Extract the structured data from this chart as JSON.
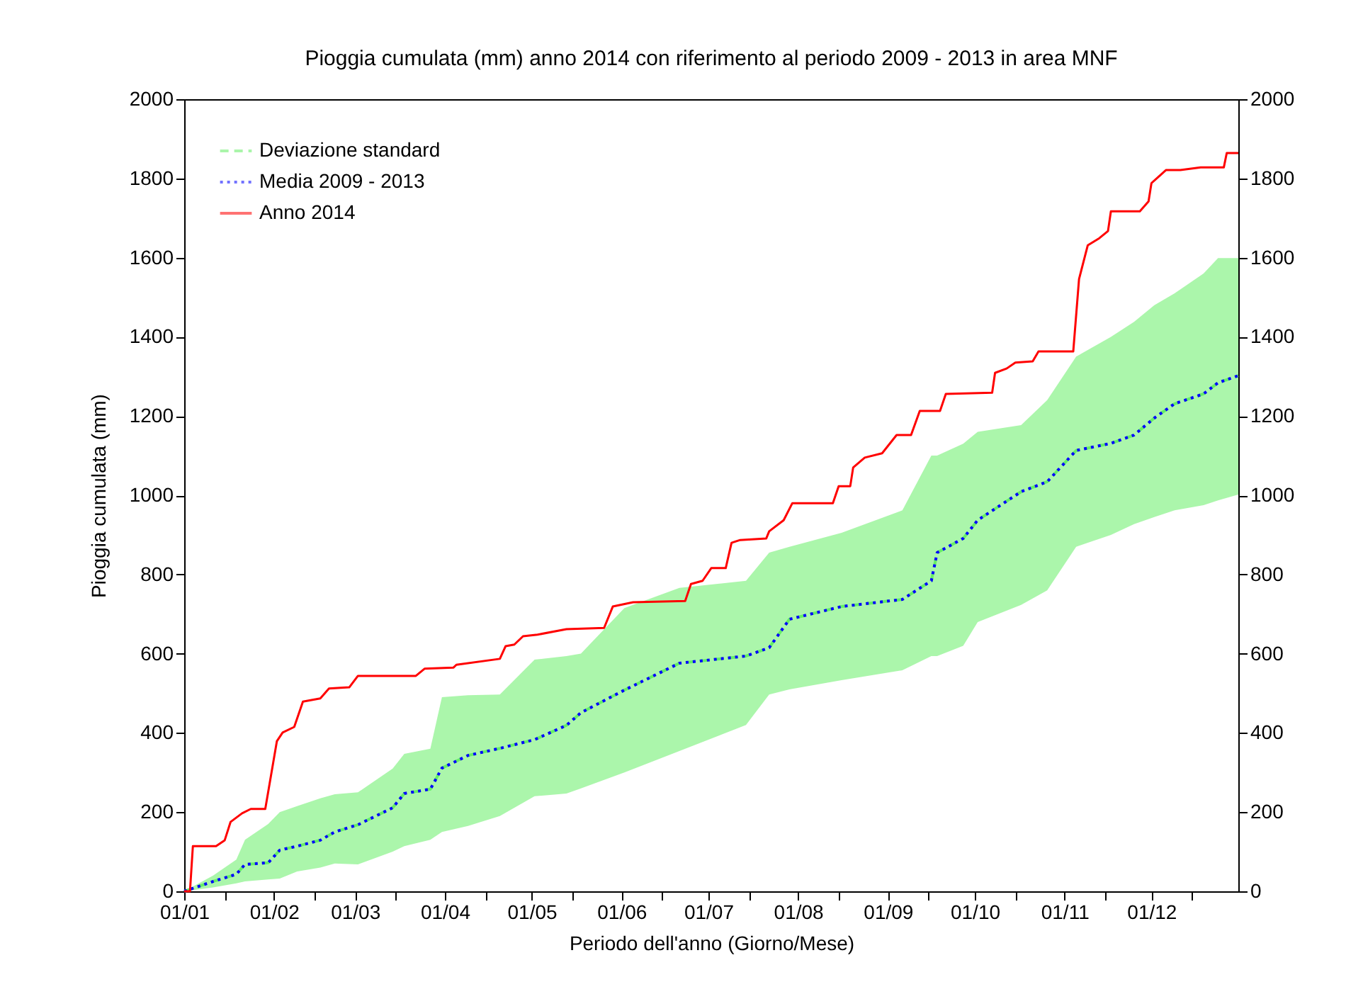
{
  "chart_data": {
    "type": "line",
    "title": "Pioggia cumulata (mm) anno 2014 con riferimento al periodo 2009 - 2013 in area MNF",
    "xlabel": "Periodo dell'anno (Giorno/Mese)",
    "ylabel": "Pioggia cumulata (mm)",
    "xlim": [
      "--01-01",
      "--12-31"
    ],
    "xticks": [
      {
        "value": "--01-01",
        "label": "01/01"
      },
      {
        "value": "--01-15",
        "label": null
      },
      {
        "value": "--02-01",
        "label": "01/02"
      },
      {
        "value": "--02-15",
        "label": null
      },
      {
        "value": "--03-01",
        "label": "01/03"
      },
      {
        "value": "--03-15",
        "label": null
      },
      {
        "value": "--04-01",
        "label": "01/04"
      },
      {
        "value": "--04-15",
        "label": null
      },
      {
        "value": "--05-01",
        "label": "01/05"
      },
      {
        "value": "--05-15",
        "label": null
      },
      {
        "value": "--06-01",
        "label": "01/06"
      },
      {
        "value": "--06-15",
        "label": null
      },
      {
        "value": "--07-01",
        "label": "01/07"
      },
      {
        "value": "--07-15",
        "label": null
      },
      {
        "value": "--08-01",
        "label": "01/08"
      },
      {
        "value": "--08-15",
        "label": null
      },
      {
        "value": "--09-01",
        "label": "01/09"
      },
      {
        "value": "--09-15",
        "label": null
      },
      {
        "value": "--10-01",
        "label": "01/10"
      },
      {
        "value": "--10-15",
        "label": null
      },
      {
        "value": "--11-01",
        "label": "01/11"
      },
      {
        "value": "--11-15",
        "label": null
      },
      {
        "value": "--12-01",
        "label": "01/12"
      },
      {
        "value": "--12-15",
        "label": null
      }
    ],
    "ylim": [
      0,
      2000
    ],
    "yticks": [
      0,
      200,
      400,
      600,
      800,
      1000,
      1200,
      1400,
      1600,
      1800,
      2000
    ],
    "y2lim": [
      0,
      2000
    ],
    "y2ticks": [
      0,
      200,
      400,
      600,
      800,
      1000,
      1200,
      1400,
      1600,
      1800,
      2000
    ],
    "legend": "top left",
    "series": [
      {
        "name": "Deviazione standard",
        "color": "#66ee66",
        "type": "line",
        "line_style": "dashed",
        "x": [
          "--01-01",
          "--01-11",
          "--01-19",
          "--01-22",
          "--01-30",
          "--02-03",
          "--02-09",
          "--02-17",
          "--02-22",
          "--03-02",
          "--03-14",
          "--03-18",
          "--03-27",
          "--03-31",
          "--04-09",
          "--04-20",
          "--05-02",
          "--05-13",
          "--05-18",
          "--06-02",
          "--06-21",
          "--07-14",
          "--07-22",
          "--07-29",
          "--08-16",
          "--09-06",
          "--09-16",
          "--09-18",
          "--09-27",
          "--10-02",
          "--10-17",
          "--10-26",
          "--11-05",
          "--11-17",
          "--11-25",
          "--12-02",
          "--12-09",
          "--12-19",
          "--12-24",
          "--12-31"
        ],
        "values": [
          0,
          25,
          43,
          68,
          72,
          104,
          114,
          129,
          150,
          168,
          211,
          247,
          258,
          311,
          343,
          361,
          383,
          419,
          451,
          508,
          576,
          594,
          615,
          687,
          719,
          737,
          784,
          855,
          891,
          937,
          1009,
          1034,
          1113,
          1131,
          1152,
          1195,
          1231,
          1256,
          1284,
          1302
        ],
        "lower": [
          0,
          10,
          20,
          25,
          30,
          32,
          50,
          60,
          70,
          68,
          100,
          114,
          130,
          150,
          165,
          190,
          240,
          247,
          260,
          300,
          354,
          420,
          497,
          510,
          533,
          558,
          594,
          594,
          620,
          680,
          723,
          760,
          870,
          900,
          927,
          945,
          962,
          975,
          987,
          1002
        ],
        "upper": [
          0,
          40,
          80,
          130,
          170,
          200,
          215,
          235,
          245,
          250,
          310,
          347,
          360,
          490,
          495,
          497,
          585,
          594,
          600,
          715,
          766,
          784,
          855,
          870,
          905,
          962,
          1100,
          1100,
          1130,
          1160,
          1177,
          1240,
          1350,
          1400,
          1438,
          1480,
          1510,
          1560,
          1599,
          1599
        ]
      },
      {
        "name": "Media 2009 - 2013",
        "color": "#0000ff",
        "type": "line",
        "line_style": "dotted",
        "x": [
          "--01-01",
          "--01-11",
          "--01-19",
          "--01-22",
          "--01-30",
          "--02-03",
          "--02-09",
          "--02-17",
          "--02-22",
          "--03-02",
          "--03-14",
          "--03-18",
          "--03-27",
          "--03-31",
          "--04-09",
          "--04-20",
          "--05-02",
          "--05-13",
          "--05-18",
          "--06-02",
          "--06-21",
          "--07-14",
          "--07-22",
          "--07-29",
          "--08-16",
          "--09-06",
          "--09-16",
          "--09-18",
          "--09-27",
          "--10-02",
          "--10-17",
          "--10-26",
          "--11-05",
          "--11-17",
          "--11-25",
          "--12-02",
          "--12-09",
          "--12-19",
          "--12-24",
          "--12-31"
        ],
        "values": [
          0,
          25,
          43,
          68,
          72,
          104,
          114,
          129,
          150,
          168,
          211,
          247,
          258,
          311,
          343,
          361,
          383,
          419,
          451,
          508,
          576,
          594,
          615,
          687,
          719,
          737,
          784,
          855,
          891,
          937,
          1009,
          1034,
          1113,
          1131,
          1152,
          1195,
          1231,
          1256,
          1284,
          1302
        ]
      },
      {
        "name": "Anno 2014",
        "color": "#ff0000",
        "type": "line",
        "line_style": "solid",
        "x": [
          "--01-01",
          "--01-03",
          "--01-04",
          "--01-12",
          "--01-15",
          "--01-17",
          "--01-21",
          "--01-24",
          "--01-29",
          "--02-02",
          "--02-04",
          "--02-08",
          "--02-11",
          "--02-17",
          "--02-20",
          "--02-27",
          "--03-02",
          "--03-22",
          "--03-25",
          "--04-04",
          "--04-05",
          "--04-20",
          "--04-22",
          "--04-25",
          "--04-28",
          "--05-03",
          "--05-13",
          "--05-26",
          "--05-29",
          "--06-05",
          "--06-23",
          "--06-25",
          "--06-29",
          "--07-02",
          "--07-07",
          "--07-09",
          "--07-12",
          "--07-21",
          "--07-22",
          "--07-27",
          "--07-30",
          "--08-13",
          "--08-15",
          "--08-19",
          "--08-20",
          "--08-24",
          "--08-30",
          "--09-04",
          "--09-09",
          "--09-12",
          "--09-19",
          "--09-21",
          "--10-07",
          "--10-08",
          "--10-12",
          "--10-15",
          "--10-21",
          "--10-23",
          "--11-04",
          "--11-06",
          "--11-09",
          "--11-13",
          "--11-16",
          "--11-17",
          "--11-27",
          "--11-30",
          "--12-01",
          "--12-06",
          "--12-11",
          "--12-18",
          "--12-26",
          "--12-27",
          "--12-31"
        ],
        "values": [
          0,
          0,
          114,
          114,
          129,
          175,
          197,
          208,
          208,
          379,
          401,
          415,
          479,
          487,
          512,
          515,
          544,
          544,
          562,
          565,
          572,
          587,
          619,
          623,
          644,
          648,
          662,
          665,
          719,
          730,
          733,
          776,
          784,
          816,
          816,
          880,
          887,
          891,
          909,
          937,
          980,
          980,
          1023,
          1023,
          1070,
          1095,
          1106,
          1152,
          1152,
          1213,
          1213,
          1256,
          1259,
          1309,
          1320,
          1335,
          1338,
          1363,
          1363,
          1546,
          1631,
          1649,
          1667,
          1717,
          1717,
          1742,
          1788,
          1821,
          1821,
          1828,
          1828,
          1864,
          1864
        ]
      }
    ]
  }
}
